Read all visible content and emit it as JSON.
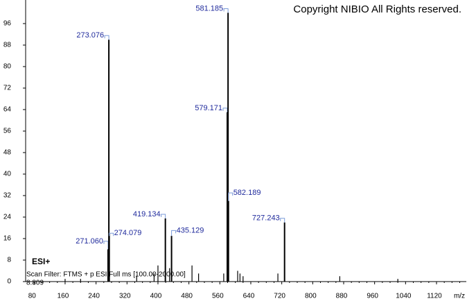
{
  "chart_data": {
    "type": "spectrum",
    "title": "Copyright NIBIO All Rights reserved.",
    "annotations": [
      "ESI+",
      "Scan Filter: FTMS + p ESI Full ms [100.00-2000.00]",
      "8.809"
    ],
    "x_label": "m/z",
    "color": "#000000",
    "label_color": "#1f2a9c",
    "x": [
      271.06,
      273.076,
      274.079,
      419.134,
      435.129,
      579.171,
      581.185,
      582.189,
      727.243
    ],
    "x_labels": [
      "271.060",
      "273.076",
      "274.079",
      "419.134",
      "435.129",
      "579.171",
      "581.185",
      "582.189",
      "727.243"
    ],
    "values": [
      12,
      90,
      18,
      23.5,
      17,
      63,
      100,
      30,
      22
    ],
    "minor_x": [
      160,
      200,
      345,
      390,
      400,
      430,
      488,
      505,
      570,
      606,
      612,
      620,
      710,
      870,
      1020
    ],
    "minor_values": [
      1,
      1,
      2,
      3,
      6,
      5,
      6,
      3,
      3,
      4,
      3,
      2,
      3,
      2,
      1
    ],
    "xlim": [
      58,
      1197
    ],
    "xticks": [
      80,
      160,
      240,
      320,
      400,
      480,
      560,
      640,
      720,
      800,
      880,
      960,
      1040,
      1120
    ],
    "ylim": [
      0,
      104
    ],
    "yticks": [
      0,
      8,
      16,
      24,
      32,
      40,
      48,
      56,
      64,
      72,
      80,
      88,
      96
    ]
  }
}
